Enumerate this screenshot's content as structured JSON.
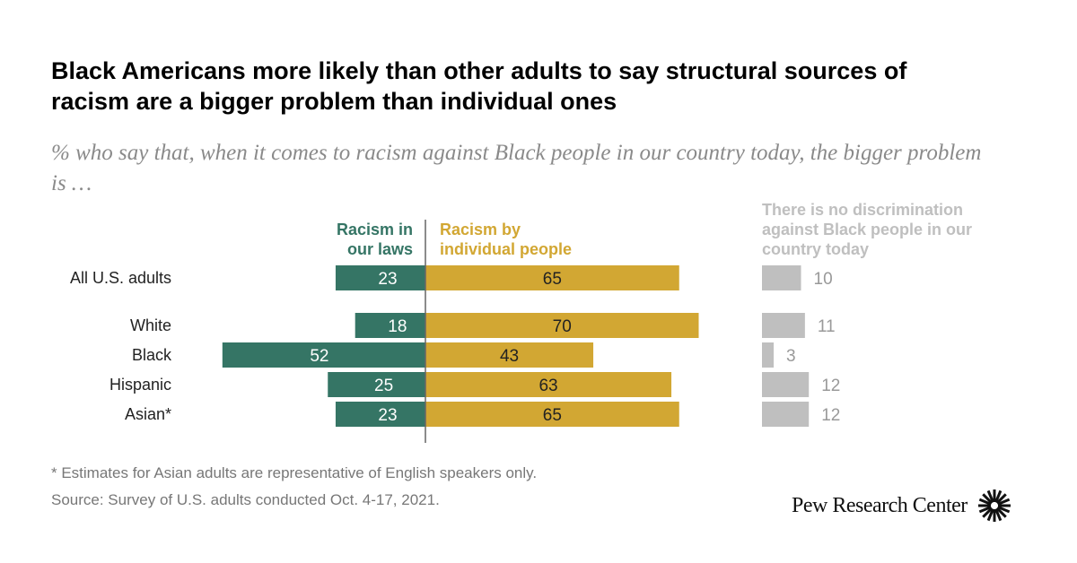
{
  "title": "Black Americans more likely than other adults to say structural sources of racism are a bigger problem than individual ones",
  "subtitle": "% who say that, when it comes to racism against Black people in our country today, the bigger problem is …",
  "notes": [
    "* Estimates for Asian adults are representative of English speakers only.",
    "Source: Survey of U.S. adults conducted Oct. 4-17, 2021."
  ],
  "logo": "Pew Research Center",
  "chart_data": {
    "type": "bar",
    "orientation": "horizontal-diverging",
    "categories": [
      "All U.S. adults",
      "White",
      "Black",
      "Hispanic",
      "Asian*"
    ],
    "series": [
      {
        "name": "Racism in our laws",
        "color": "#357565",
        "values": [
          23,
          18,
          52,
          25,
          23
        ]
      },
      {
        "name": "Racism by individual people",
        "color": "#d2a733",
        "values": [
          65,
          70,
          43,
          63,
          65
        ]
      },
      {
        "name": "There is no discrimination against Black people in our country today",
        "color": "#bfbfbf",
        "values": [
          10,
          11,
          3,
          12,
          12
        ]
      }
    ],
    "legend_lines": {
      "laws": [
        "Racism in",
        "our laws"
      ],
      "individual": [
        "Racism by",
        "individual people"
      ],
      "none": [
        "There is no discrimination",
        "against Black people in our",
        "country today"
      ]
    }
  }
}
